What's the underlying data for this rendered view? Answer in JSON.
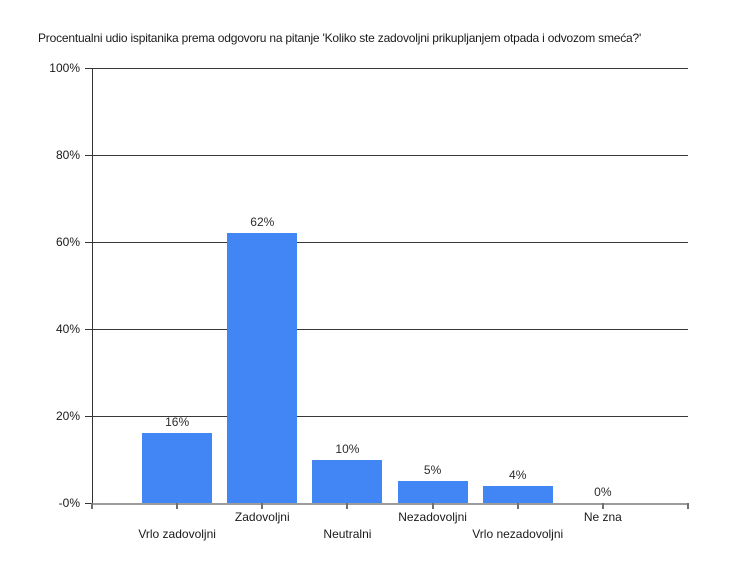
{
  "chart_data": {
    "type": "bar",
    "title": "Procentualni udio ispitanika prema odgovoru na pitanje 'Koliko ste zadovoljni prikupljanjem otpada i odvozom smeća?'",
    "categories": [
      "Vrlo zadovoljni",
      "Zadovoljni",
      "Neutralni",
      "Nezadovoljni",
      "Vrlo nezadovoljni",
      "Ne zna"
    ],
    "values": [
      16,
      62,
      10,
      5,
      4,
      0
    ],
    "value_labels": [
      "16%",
      "62%",
      "10%",
      "5%",
      "4%",
      "0%"
    ],
    "y_tick_labels": [
      "100%",
      "80%",
      "60%",
      "40%",
      "20%",
      "-0%"
    ],
    "ylim": [
      0,
      100
    ],
    "xlabel": "",
    "ylabel": "",
    "grid": true,
    "legend": "none",
    "bar_color": "#4285f4",
    "gridline_color": "#383838",
    "baseline_color": "#9c9c9c",
    "text_color": "#1a1a1a"
  }
}
